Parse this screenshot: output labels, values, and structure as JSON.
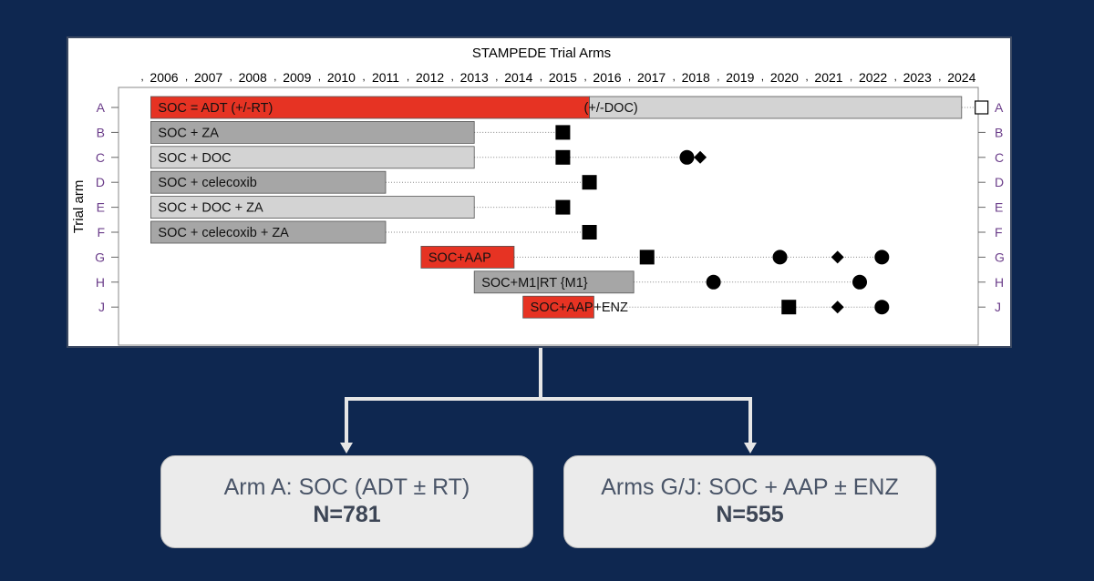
{
  "title": "STAMPEDE Trial Arms",
  "y_axis_label": "Trial arm",
  "years": [
    "2006",
    "2007",
    "2008",
    "2009",
    "2010",
    "2011",
    "2012",
    "2013",
    "2014",
    "2015",
    "2016",
    "2017",
    "2018",
    "2019",
    "2020",
    "2021",
    "2022",
    "2023",
    "2024"
  ],
  "colors": {
    "red": "#e63323",
    "grey_dark": "#a6a6a6",
    "grey_light": "#d3d3d3",
    "arm_label": "#6b3d8a",
    "background": "#0e2750",
    "connector": "#e6e6e6"
  },
  "arms": [
    {
      "id": "A",
      "segments": [
        {
          "start": 2005.7,
          "end": 2015.6,
          "color": "red",
          "label": "SOC = ADT (+/-RT)"
        },
        {
          "start": 2015.6,
          "end": 2024.0,
          "color": "grey_light",
          "label": "(+/-DOC)"
        }
      ],
      "dotted_to": 2024.3,
      "markers": [
        {
          "year": 2024.45,
          "shape": "open-square"
        }
      ]
    },
    {
      "id": "B",
      "segments": [
        {
          "start": 2005.7,
          "end": 2013.0,
          "color": "grey_dark",
          "label": "SOC + ZA"
        }
      ],
      "dotted_to": 2014.9,
      "markers": [
        {
          "year": 2015.0,
          "shape": "square"
        }
      ]
    },
    {
      "id": "C",
      "segments": [
        {
          "start": 2005.7,
          "end": 2013.0,
          "color": "grey_light",
          "label": "SOC + DOC"
        }
      ],
      "dotted_to": 2018.0,
      "markers": [
        {
          "year": 2015.0,
          "shape": "square"
        },
        {
          "year": 2017.8,
          "shape": "circle"
        },
        {
          "year": 2018.1,
          "shape": "diamond"
        }
      ]
    },
    {
      "id": "D",
      "segments": [
        {
          "start": 2005.7,
          "end": 2011.0,
          "color": "grey_dark",
          "label": "SOC + celecoxib"
        }
      ],
      "dotted_to": 2015.5,
      "markers": [
        {
          "year": 2015.6,
          "shape": "square"
        }
      ]
    },
    {
      "id": "E",
      "segments": [
        {
          "start": 2005.7,
          "end": 2013.0,
          "color": "grey_light",
          "label": "SOC + DOC + ZA"
        }
      ],
      "dotted_to": 2014.9,
      "markers": [
        {
          "year": 2015.0,
          "shape": "square"
        }
      ]
    },
    {
      "id": "F",
      "segments": [
        {
          "start": 2005.7,
          "end": 2011.0,
          "color": "grey_dark",
          "label": "SOC + celecoxib + ZA"
        }
      ],
      "dotted_to": 2015.5,
      "markers": [
        {
          "year": 2015.6,
          "shape": "square"
        }
      ]
    },
    {
      "id": "G",
      "segments": [
        {
          "start": 2011.8,
          "end": 2013.9,
          "color": "red",
          "label": "SOC+AAP"
        }
      ],
      "dotted_to": 2022.1,
      "markers": [
        {
          "year": 2016.9,
          "shape": "square"
        },
        {
          "year": 2019.9,
          "shape": "circle"
        },
        {
          "year": 2021.2,
          "shape": "diamond"
        },
        {
          "year": 2022.2,
          "shape": "circle"
        }
      ]
    },
    {
      "id": "H",
      "segments": [
        {
          "start": 2013.0,
          "end": 2016.6,
          "color": "grey_dark",
          "label": "SOC+M1|RT {M1}"
        }
      ],
      "dotted_to": 2021.6,
      "markers": [
        {
          "year": 2018.4,
          "shape": "circle"
        },
        {
          "year": 2021.7,
          "shape": "circle"
        }
      ]
    },
    {
      "id": "J",
      "segments": [
        {
          "start": 2014.1,
          "end": 2015.7,
          "color": "red",
          "label": "SOC+AAP"
        }
      ],
      "suffix_label": "+ENZ",
      "dotted_to": 2022.1,
      "markers": [
        {
          "year": 2020.1,
          "shape": "square"
        },
        {
          "year": 2021.2,
          "shape": "diamond"
        },
        {
          "year": 2022.2,
          "shape": "circle"
        }
      ]
    }
  ],
  "boxes": {
    "left": {
      "title": "Arm A: SOC (ADT ± RT)",
      "n": "N=781"
    },
    "right": {
      "title": "Arms G/J: SOC + AAP ± ENZ",
      "n": "N=555"
    }
  }
}
